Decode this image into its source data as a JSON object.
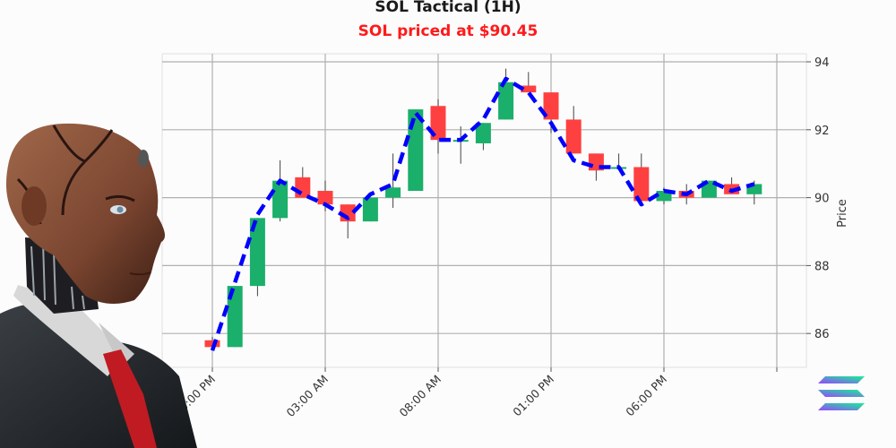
{
  "header": {
    "title": "SOL Tactical (1H)",
    "subtitle": "SOL priced at $90.45",
    "subtitle_color": "#ff1a1a"
  },
  "colors": {
    "up": "#1aaf6a",
    "down": "#ff4040",
    "line": "#0000ff",
    "grid": "#b0b0b0"
  },
  "icons": {
    "avatar": "robot-businessman-illustration",
    "logo": "solana-logo-icon"
  },
  "chart_data": {
    "type": "candlestick",
    "title": "SOL Tactical (1H)",
    "subtitle": "SOL priced at $90.45",
    "xlabel": "",
    "ylabel": "Price",
    "ylim": [
      85.0,
      94.2
    ],
    "yticks": [
      86,
      88,
      90,
      92,
      94
    ],
    "xtick_labels": [
      "10:00 PM",
      "03:00 AM",
      "08:00 AM",
      "01:00 PM",
      "06:00 PM"
    ],
    "grid": true,
    "y_axis_position": "right",
    "candles": [
      {
        "open": 85.8,
        "high": 85.9,
        "low": 85.5,
        "close": 85.6
      },
      {
        "open": 85.6,
        "high": 87.4,
        "low": 85.6,
        "close": 87.4
      },
      {
        "open": 87.4,
        "high": 89.4,
        "low": 87.1,
        "close": 89.4
      },
      {
        "open": 89.4,
        "high": 91.1,
        "low": 89.3,
        "close": 90.5
      },
      {
        "open": 90.6,
        "high": 90.9,
        "low": 90.0,
        "close": 90.0
      },
      {
        "open": 90.2,
        "high": 90.5,
        "low": 89.6,
        "close": 89.8
      },
      {
        "open": 89.8,
        "high": 89.8,
        "low": 88.8,
        "close": 89.3
      },
      {
        "open": 89.3,
        "high": 90.0,
        "low": 89.3,
        "close": 90.0
      },
      {
        "open": 90.0,
        "high": 91.3,
        "low": 89.7,
        "close": 90.3
      },
      {
        "open": 90.2,
        "high": 92.6,
        "low": 90.2,
        "close": 92.6
      },
      {
        "open": 92.7,
        "high": 92.9,
        "low": 91.3,
        "close": 91.7
      },
      {
        "open": 91.7,
        "high": 92.1,
        "low": 91.0,
        "close": 91.7
      },
      {
        "open": 91.6,
        "high": 92.2,
        "low": 91.4,
        "close": 92.2
      },
      {
        "open": 92.3,
        "high": 93.8,
        "low": 92.3,
        "close": 93.4
      },
      {
        "open": 93.3,
        "high": 93.7,
        "low": 93.1,
        "close": 93.1
      },
      {
        "open": 93.1,
        "high": 93.1,
        "low": 91.9,
        "close": 92.3
      },
      {
        "open": 92.3,
        "high": 92.7,
        "low": 91.3,
        "close": 91.3
      },
      {
        "open": 91.3,
        "high": 91.3,
        "low": 90.5,
        "close": 90.8
      },
      {
        "open": 90.9,
        "high": 91.3,
        "low": 90.9,
        "close": 90.9
      },
      {
        "open": 90.9,
        "high": 91.3,
        "low": 89.8,
        "close": 89.9
      },
      {
        "open": 89.9,
        "high": 90.3,
        "low": 89.8,
        "close": 90.2
      },
      {
        "open": 90.2,
        "high": 90.4,
        "low": 89.8,
        "close": 90.0
      },
      {
        "open": 90.0,
        "high": 90.5,
        "low": 90.0,
        "close": 90.5
      },
      {
        "open": 90.4,
        "high": 90.6,
        "low": 90.1,
        "close": 90.1
      },
      {
        "open": 90.1,
        "high": 90.5,
        "low": 89.8,
        "close": 90.4
      }
    ],
    "overlay_line": {
      "name": "trend",
      "style": "dashed",
      "color": "#0000ff",
      "values": [
        85.5,
        87.5,
        89.5,
        90.5,
        90.1,
        89.8,
        89.4,
        90.1,
        90.4,
        92.5,
        91.7,
        91.7,
        92.3,
        93.5,
        93.1,
        92.2,
        91.1,
        90.9,
        90.9,
        89.8,
        90.2,
        90.1,
        90.5,
        90.2,
        90.4
      ]
    }
  }
}
